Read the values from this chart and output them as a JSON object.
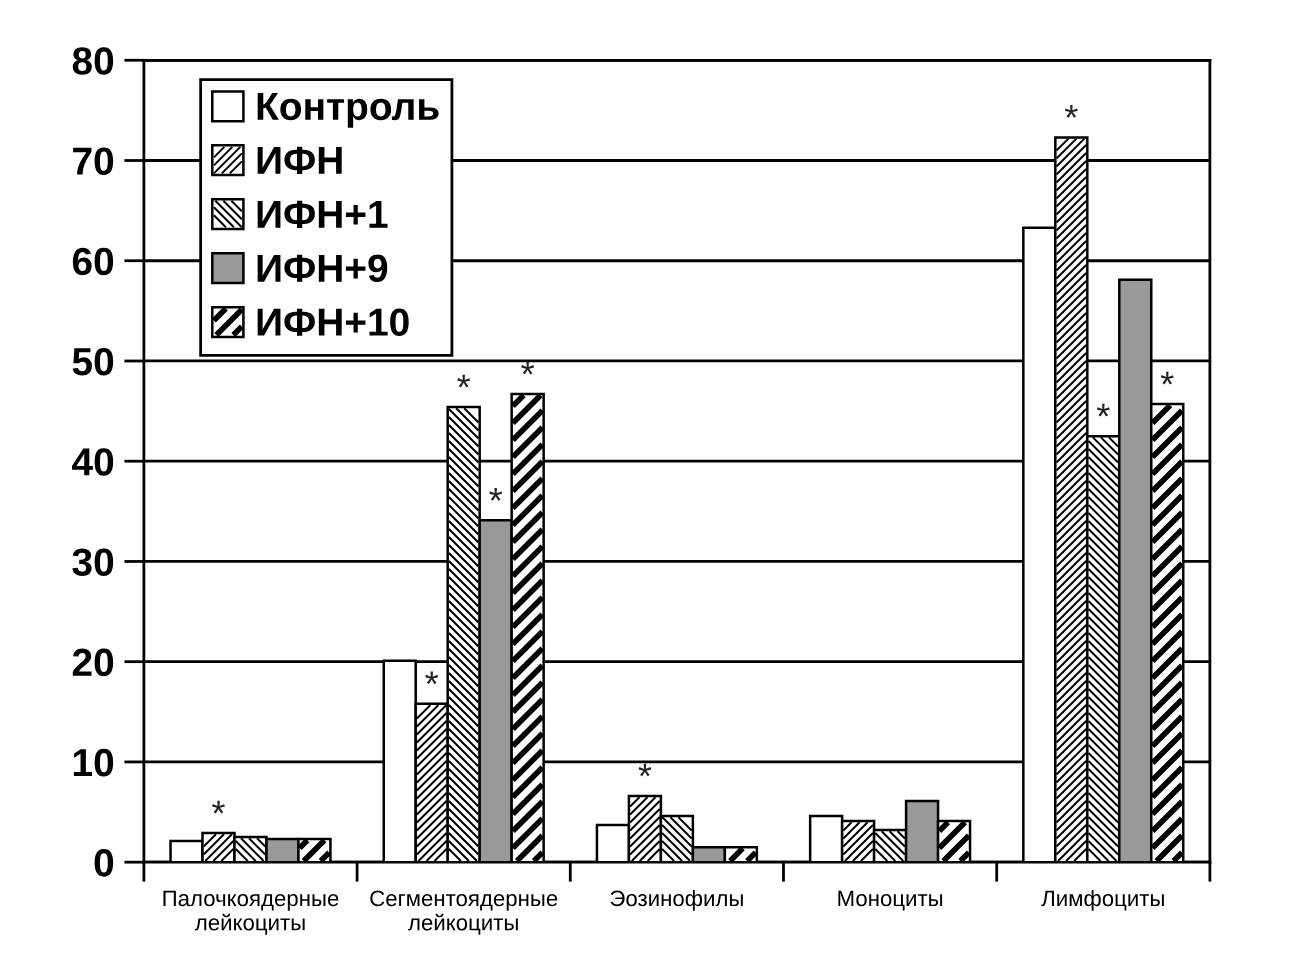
{
  "chart_data": {
    "type": "bar",
    "categories": [
      "Палочкоядерные\nлейкоциты",
      "Сегментоядерные\nлейкоциты",
      "Эозинофилы",
      "Моноциты",
      "Лимфоциты"
    ],
    "series": [
      {
        "name": "Контроль",
        "color": "#ffffff",
        "values": [
          2.1,
          20.1,
          3.7,
          4.6,
          63.3
        ]
      },
      {
        "name": "ИФН",
        "color": "#ffffff",
        "values": [
          2.9,
          15.8,
          6.6,
          4.1,
          72.3
        ],
        "value_labels": [
          "*",
          "*",
          "*",
          null,
          "*"
        ]
      },
      {
        "name": "ИФН+1",
        "color": "#ffffff",
        "values": [
          2.5,
          45.4,
          4.6,
          3.2,
          42.5
        ],
        "value_labels": [
          null,
          "*",
          null,
          null,
          "*"
        ]
      },
      {
        "name": "ИФН+9",
        "color": "#999999",
        "values": [
          2.3,
          34.1,
          1.5,
          6.1,
          58.1
        ],
        "value_labels": [
          null,
          "*",
          null,
          null,
          null
        ]
      },
      {
        "name": "ИФН+10",
        "color": "#ffffff",
        "values": [
          2.3,
          46.7,
          1.5,
          4.1,
          45.7
        ],
        "value_labels": [
          null,
          "*",
          null,
          null,
          "*"
        ]
      }
    ],
    "ylim": [
      0,
      80
    ],
    "yticks": [
      0,
      10,
      20,
      30,
      40,
      50,
      60,
      70,
      80
    ],
    "grid": "y",
    "legend": "top left"
  }
}
